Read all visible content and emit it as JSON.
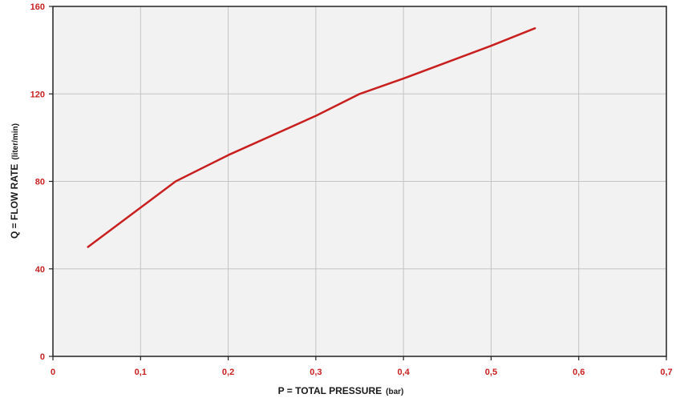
{
  "colors": {
    "plot_background": "#f2f2f2",
    "grid": "#c4c4c4",
    "axis_frame": "#222222",
    "series_line": "#c8201f",
    "tick_label": "#c8201f",
    "axis_title": "#1a1a1a"
  },
  "chart_data": {
    "type": "line",
    "title": "",
    "xlabel": "P = TOTAL PRESSURE",
    "xlabel_unit": "(bar)",
    "ylabel": "Q = FLOW RATE",
    "ylabel_unit": "(liter/min)",
    "xlim": [
      0,
      0.7
    ],
    "ylim": [
      0,
      160
    ],
    "x_ticks": [
      0,
      0.1,
      0.2,
      0.3,
      0.4,
      0.5,
      0.6,
      0.7
    ],
    "x_tick_labels": [
      "0",
      "0,1",
      "0,2",
      "0,3",
      "0,4",
      "0,5",
      "0,6",
      "0,7"
    ],
    "y_ticks": [
      0,
      40,
      80,
      120,
      160
    ],
    "y_tick_labels": [
      "0",
      "40",
      "80",
      "120",
      "160"
    ],
    "grid": true,
    "series": [
      {
        "points": [
          {
            "x": 0.04,
            "y": 50
          },
          {
            "x": 0.1,
            "y": 68
          },
          {
            "x": 0.14,
            "y": 80
          },
          {
            "x": 0.2,
            "y": 92
          },
          {
            "x": 0.3,
            "y": 110
          },
          {
            "x": 0.35,
            "y": 120
          },
          {
            "x": 0.4,
            "y": 127
          },
          {
            "x": 0.5,
            "y": 142
          },
          {
            "x": 0.55,
            "y": 150
          }
        ]
      }
    ]
  }
}
